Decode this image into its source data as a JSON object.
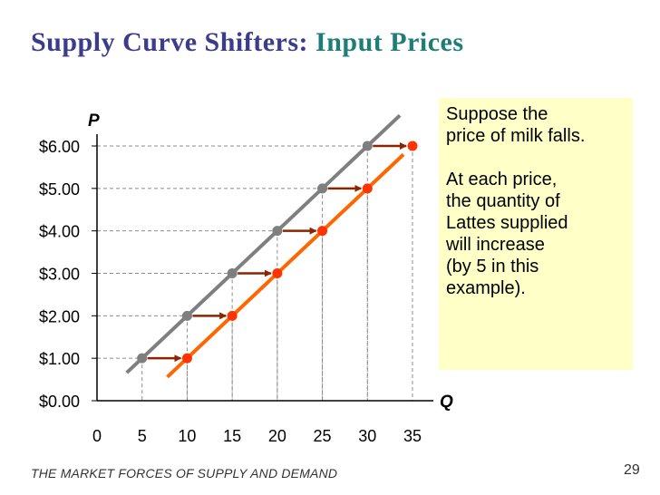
{
  "slide": {
    "title_main": "Supply Curve Shifters:",
    "title_sub": "Input Prices",
    "footer": "THE MARKET FORCES OF SUPPLY AND DEMAND",
    "page_number": "29"
  },
  "callout": {
    "line1": "Suppose the",
    "line2": "price of milk falls.",
    "line3": "At each price,",
    "line4": "the quantity of",
    "line5": "Lattes supplied",
    "line6": "will increase",
    "line7": "(by 5 in this",
    "line8": "example).",
    "background": "#ffffc8"
  },
  "chart_data": {
    "type": "line",
    "ylabel": "P",
    "xlabel": "Q",
    "xticks": [
      "0",
      "5",
      "10",
      "15",
      "20",
      "25",
      "30",
      "35"
    ],
    "yticks": [
      "$0.00",
      "$1.00",
      "$2.00",
      "$3.00",
      "$4.00",
      "$5.00",
      "$6.00"
    ],
    "xlim": [
      0,
      35
    ],
    "ylim": [
      0,
      6
    ],
    "grid": "dashed-drop-lines",
    "series": [
      {
        "color": "#7f7f7f",
        "x": [
          5,
          10,
          15,
          20,
          25,
          30
        ],
        "y": [
          1,
          2,
          3,
          4,
          5,
          6
        ],
        "line_x": [
          3.3,
          33.6
        ]
      },
      {
        "color": "#ff6600",
        "point_color": "#ff3300",
        "x": [
          10,
          15,
          20,
          25,
          30,
          35
        ],
        "y": [
          1,
          2,
          3,
          4,
          5,
          6
        ],
        "line_x": [
          7.8,
          34
        ]
      }
    ],
    "arrows": {
      "color": "#8b2500",
      "from": [
        [
          5,
          1
        ],
        [
          10,
          2
        ],
        [
          15,
          3
        ],
        [
          20,
          4
        ],
        [
          25,
          5
        ],
        [
          30,
          6
        ]
      ],
      "to": [
        [
          10,
          1
        ],
        [
          15,
          2
        ],
        [
          20,
          3
        ],
        [
          25,
          4
        ],
        [
          30,
          5
        ],
        [
          35,
          6
        ]
      ]
    }
  }
}
